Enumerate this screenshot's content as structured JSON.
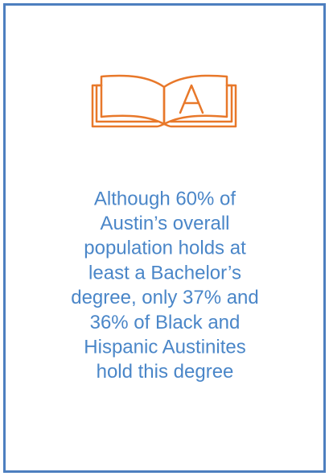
{
  "card": {
    "lines": [
      "Although 60% of",
      "Austin’s overall",
      "population holds at",
      "least a Bachelor’s",
      "degree, only 37% and",
      "36% of Black and",
      "Hispanic Austinites",
      "hold this degree"
    ]
  }
}
